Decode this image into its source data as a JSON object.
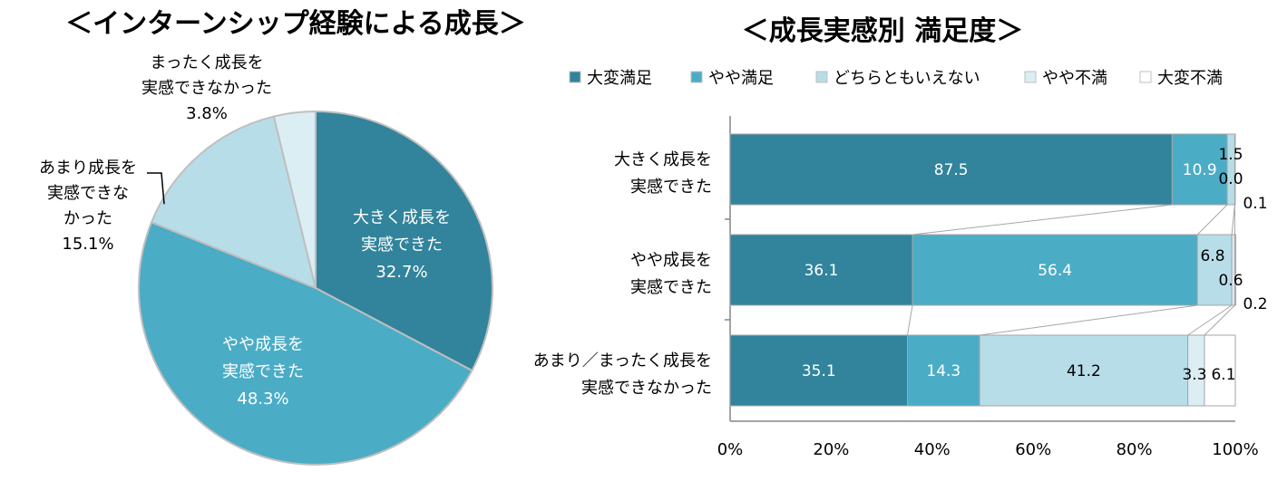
{
  "chart_data": [
    {
      "type": "pie",
      "title": "＜インターンシップ経験による成長＞",
      "slices": [
        {
          "label_lines": [
            "大きく成長を",
            "実感できた"
          ],
          "pct_label": "32.7%",
          "value": 32.7,
          "color": "#31849b"
        },
        {
          "label_lines": [
            "やや成長を",
            "実感できた"
          ],
          "pct_label": "48.3%",
          "value": 48.3,
          "color": "#4bacc6"
        },
        {
          "label_lines": [
            "あまり成長を",
            "実感できな",
            "かった"
          ],
          "pct_label": "15.1%",
          "value": 15.1,
          "color": "#b7dde8"
        },
        {
          "label_lines": [
            "まったく成長を",
            "実感できなかった"
          ],
          "pct_label": "3.8%",
          "value": 3.8,
          "color": "#daeef3"
        }
      ]
    },
    {
      "type": "bar",
      "orientation": "horizontal",
      "stacked": true,
      "title": "＜成長実感別 満足度＞",
      "legend_position": "top",
      "categories": [
        [
          "大きく成長を",
          "実感できた"
        ],
        [
          "やや成長を",
          "実感できた"
        ],
        [
          "あまり／まったく成長を",
          "実感できなかった"
        ]
      ],
      "series": [
        {
          "name": "大変満足",
          "color": "#31849b",
          "values": [
            87.5,
            36.1,
            35.1
          ],
          "labels": [
            "87.5",
            "36.1",
            "35.1"
          ]
        },
        {
          "name": "やや満足",
          "color": "#4bacc6",
          "values": [
            10.9,
            56.4,
            14.3
          ],
          "labels": [
            "10.9",
            "56.4",
            "14.3"
          ]
        },
        {
          "name": "どちらともいえない",
          "color": "#b7dde8",
          "values": [
            1.5,
            6.8,
            41.2
          ],
          "labels": [
            "1.5",
            "6.8",
            "41.2"
          ]
        },
        {
          "name": "やや不満",
          "color": "#daeef3",
          "values": [
            0.0,
            0.6,
            3.3
          ],
          "labels": [
            "0.0",
            "0.6",
            "3.3"
          ]
        },
        {
          "name": "大変不満",
          "color": "#ffffff",
          "values": [
            0.1,
            0.2,
            6.1
          ],
          "labels": [
            "0.1",
            "0.2",
            "6.1"
          ]
        }
      ],
      "x_ticks": [
        "0%",
        "20%",
        "40%",
        "60%",
        "80%",
        "100%"
      ],
      "xlim": [
        0,
        100
      ]
    }
  ]
}
